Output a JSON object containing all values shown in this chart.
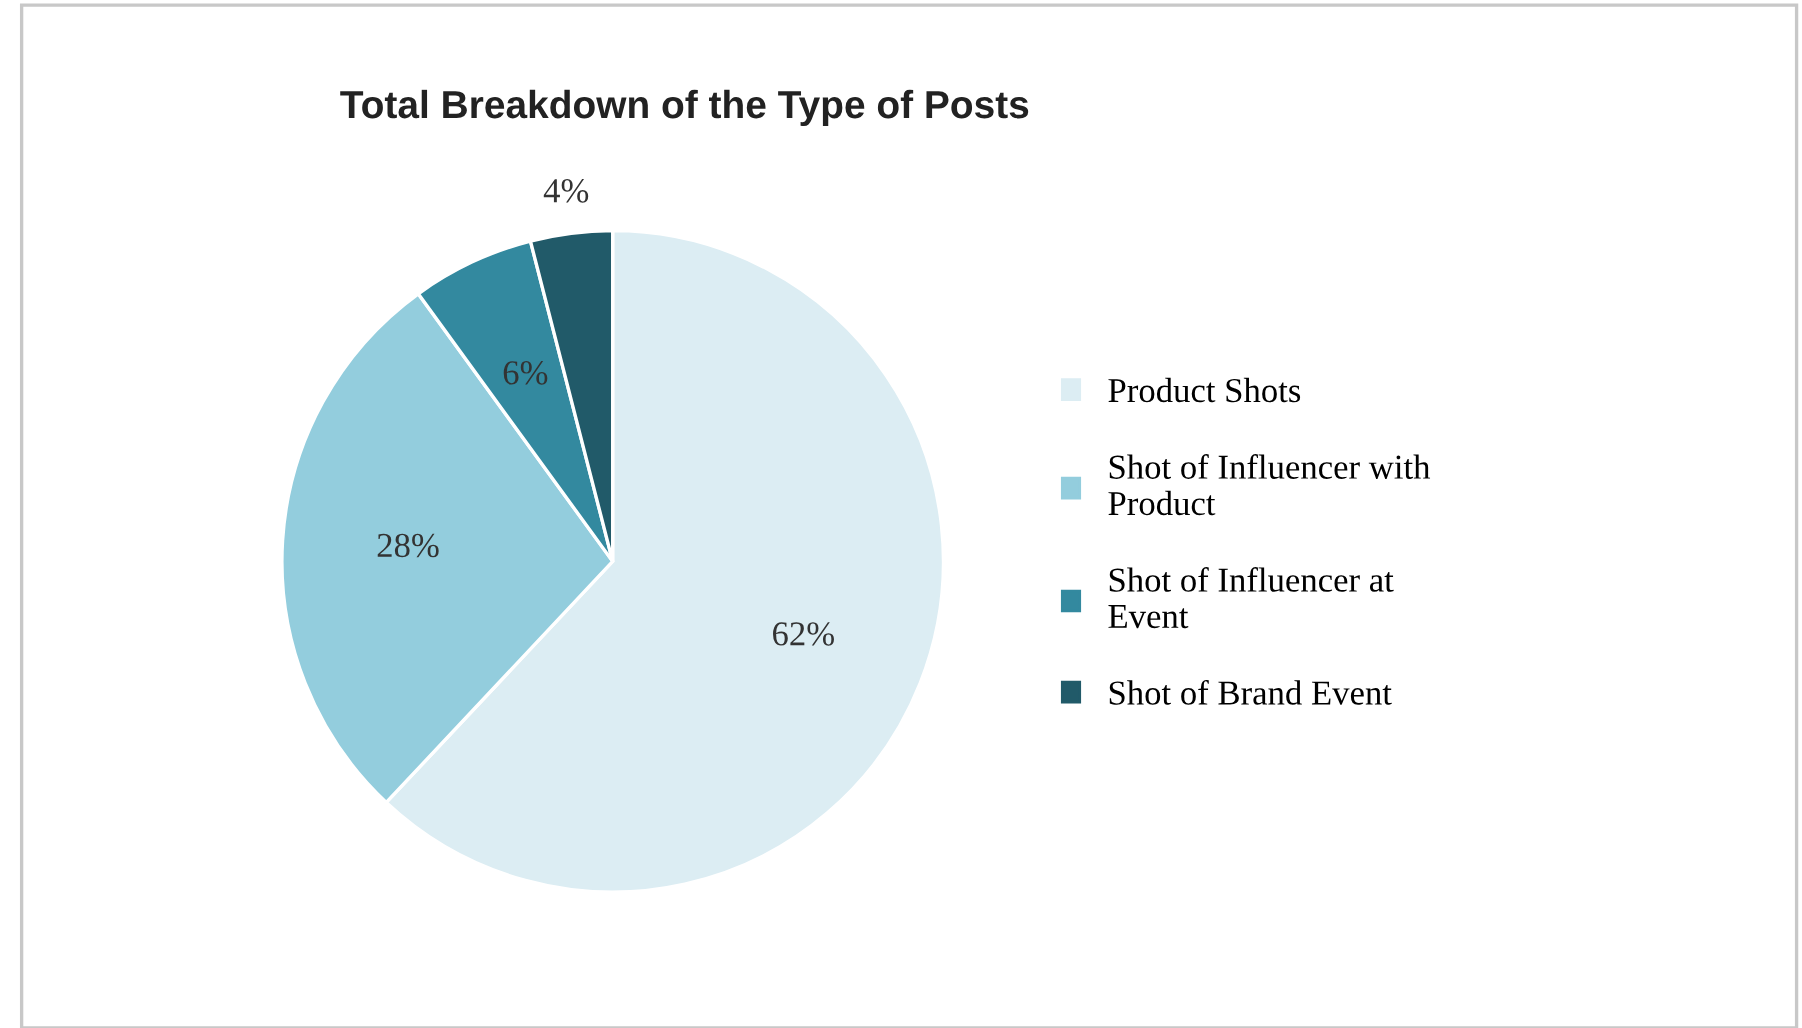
{
  "chart_data": {
    "type": "pie",
    "title": "Total Breakdown of the Type of Posts",
    "categories": [
      "Product Shots",
      "Shot of Influencer with Product",
      "Shot of Influencer at Event",
      "Shot of Brand Event"
    ],
    "values": [
      62,
      28,
      6,
      4
    ],
    "colors": [
      "#dcedf3",
      "#93cddd",
      "#33899f",
      "#215a69"
    ],
    "value_labels": [
      "62%",
      "28%",
      "6%",
      "4%"
    ],
    "legend": "right"
  }
}
